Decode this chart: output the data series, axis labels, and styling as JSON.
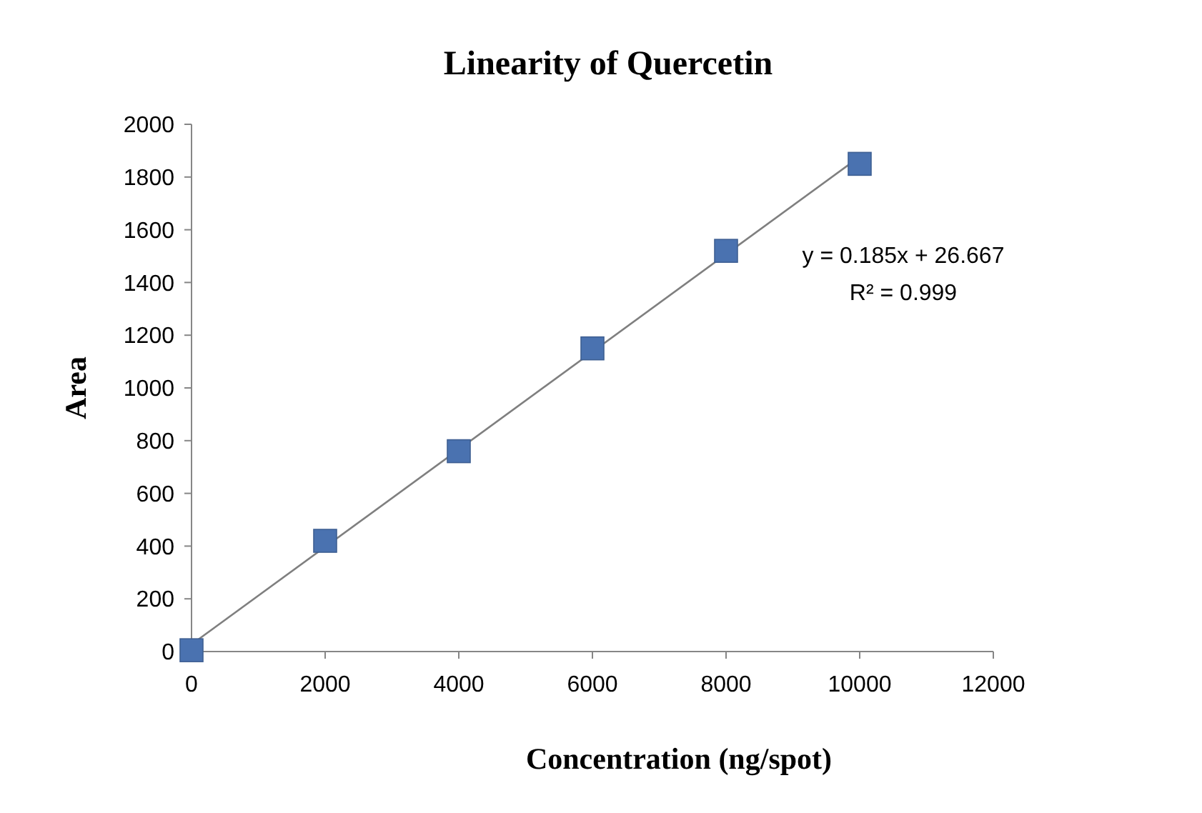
{
  "chart_data": {
    "type": "scatter",
    "title": "Linearity of Quercetin",
    "xlabel": "Concentration (ng/spot)",
    "ylabel": "Area",
    "series": [
      {
        "color": "#4a72b0",
        "marker": "square",
        "x": [
          0,
          2000,
          4000,
          6000,
          8000,
          10000
        ],
        "values": [
          5,
          420,
          760,
          1150,
          1520,
          1850
        ]
      },
      {
        "type": "line",
        "color": "#7f7f7f",
        "marker": "none",
        "x": [
          0,
          10000
        ],
        "values": [
          27,
          1877
        ]
      }
    ],
    "annotations": [
      "y = 0.185x + 26.667",
      "R² = 0.999"
    ],
    "xlim": [
      0,
      12000
    ],
    "xticks": [
      0,
      2000,
      4000,
      6000,
      8000,
      10000,
      12000
    ],
    "ylim": [
      0,
      2000
    ],
    "yticks": [
      0,
      200,
      400,
      600,
      800,
      1000,
      1200,
      1400,
      1600,
      1800,
      2000
    ],
    "grid": false
  }
}
